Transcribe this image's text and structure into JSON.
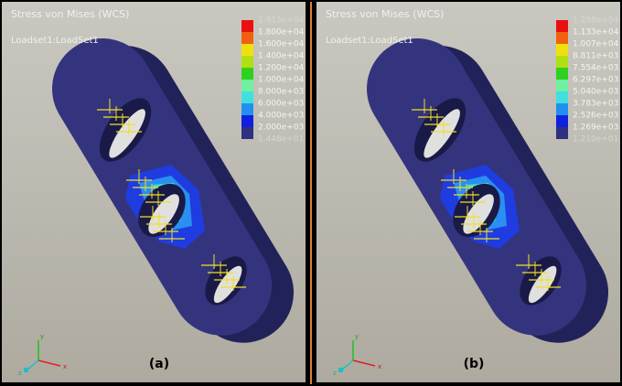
{
  "panels": [
    {
      "title": "Stress von Mises (WCS)",
      "subtitle": "Loadset1:LoadSet1",
      "legend": [
        "1.913e+04",
        "1.800e+04",
        "1.600e+04",
        "1.400e+04",
        "1.200e+04",
        "1.000e+04",
        "8.000e+03",
        "6.000e+03",
        "4.000e+03",
        "2.000e+03",
        "1.448e+01"
      ],
      "label": "(a)"
    },
    {
      "title": "Stress von Mises (WCS)",
      "subtitle": "Loadset1:LoadSet1",
      "legend": [
        "1.258e+04",
        "1.133e+04",
        "1.007e+04",
        "8.811e+03",
        "7.554e+03",
        "6.297e+03",
        "5.040e+03",
        "3.783e+03",
        "2.526e+03",
        "1.269e+03",
        "1.210e+01"
      ],
      "label": "(b)"
    }
  ],
  "legend_colors": [
    "#e81010",
    "#f06010",
    "#f0e010",
    "#b0e010",
    "#30d020",
    "#70f0a0",
    "#40e0e0",
    "#2090f0",
    "#1020e0",
    "#303080"
  ],
  "triad": {
    "x": "x",
    "y": "y",
    "z": "z"
  }
}
